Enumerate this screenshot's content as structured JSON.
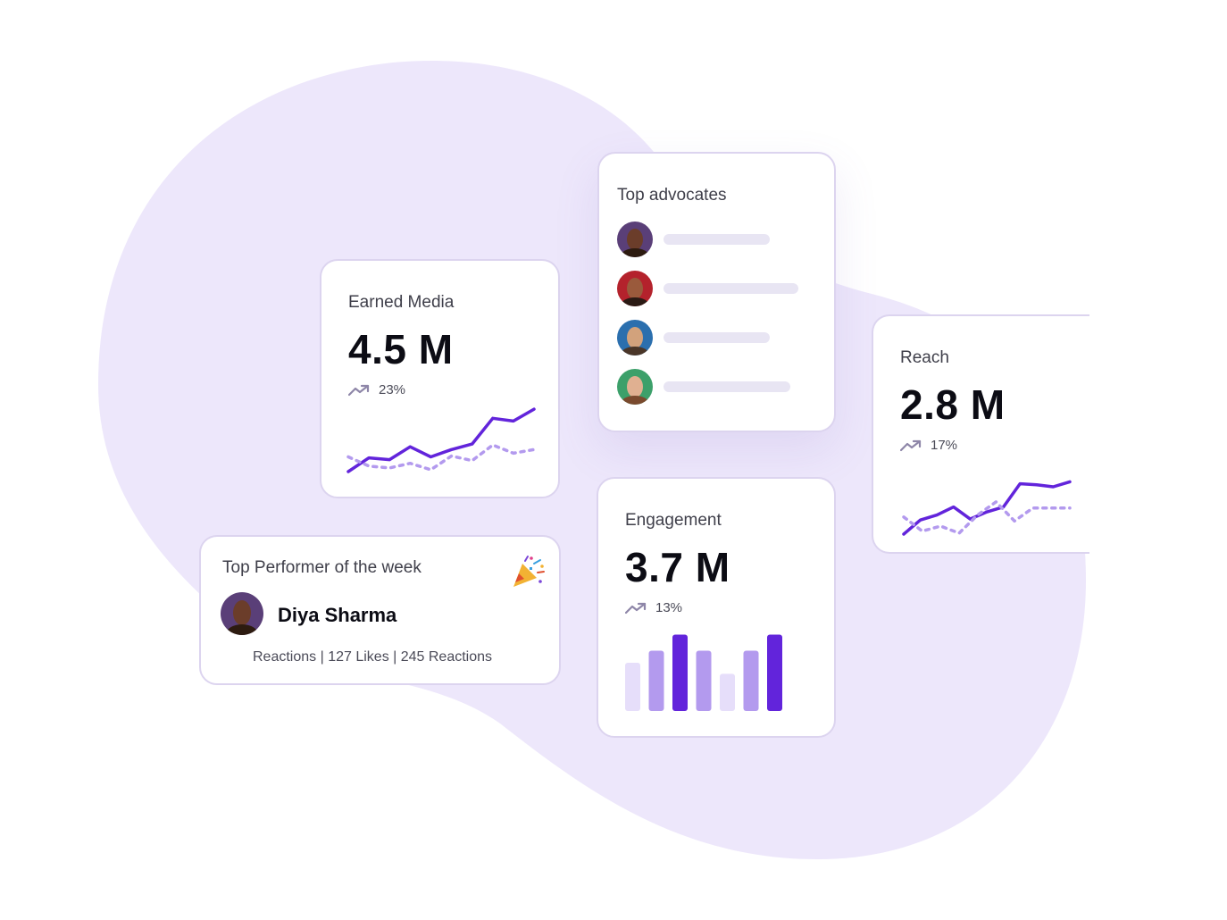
{
  "colors": {
    "accent": "#6224db",
    "accent_light": "#b39aee",
    "accent_pale": "#e6defa",
    "blob": "#ede7fb"
  },
  "earned_media": {
    "title": "Earned Media",
    "value": "4.5 M",
    "change": "23%",
    "trend_icon": "trending-up-icon"
  },
  "top_advocates": {
    "title": "Top advocates",
    "rows": [
      {
        "avatar": "avatar-1",
        "bar_fraction": 0.66
      },
      {
        "avatar": "avatar-2",
        "bar_fraction": 0.84
      },
      {
        "avatar": "avatar-3",
        "bar_fraction": 0.66
      },
      {
        "avatar": "avatar-4",
        "bar_fraction": 0.79
      }
    ]
  },
  "reach": {
    "title": "Reach",
    "value": "2.8 M",
    "change": "17%",
    "trend_icon": "trending-up-icon"
  },
  "engagement": {
    "title": "Engagement",
    "value": "3.7 M",
    "change": "13%",
    "trend_icon": "trending-up-icon"
  },
  "top_performer": {
    "title": "Top Performer of the week",
    "name": "Diya Sharma",
    "stats": "Reactions | 127 Likes | 245 Reactions",
    "icon": "party-popper-icon"
  },
  "chart_data": [
    {
      "type": "line",
      "chart": "earned-media",
      "series": [
        {
          "style": "solid",
          "values": [
            0,
            15,
            13,
            27,
            16,
            24,
            30,
            58,
            55,
            68
          ]
        },
        {
          "style": "dashed",
          "values": [
            16,
            6,
            4,
            9,
            2,
            17,
            12,
            29,
            20,
            24
          ]
        }
      ]
    },
    {
      "type": "line",
      "chart": "reach",
      "series": [
        {
          "style": "solid",
          "values": [
            0,
            14,
            19,
            27,
            15,
            22,
            27,
            50,
            49,
            47,
            52
          ]
        },
        {
          "style": "dashed",
          "values": [
            17,
            3,
            8,
            1,
            19,
            32,
            13,
            26,
            26,
            26
          ]
        }
      ]
    },
    {
      "type": "bar",
      "chart": "engagement",
      "values": [
        48,
        60,
        76,
        60,
        37,
        60,
        76
      ],
      "shades": [
        "pale",
        "light",
        "dark",
        "light",
        "pale",
        "light",
        "dark"
      ],
      "ylim": [
        0,
        80
      ]
    }
  ]
}
